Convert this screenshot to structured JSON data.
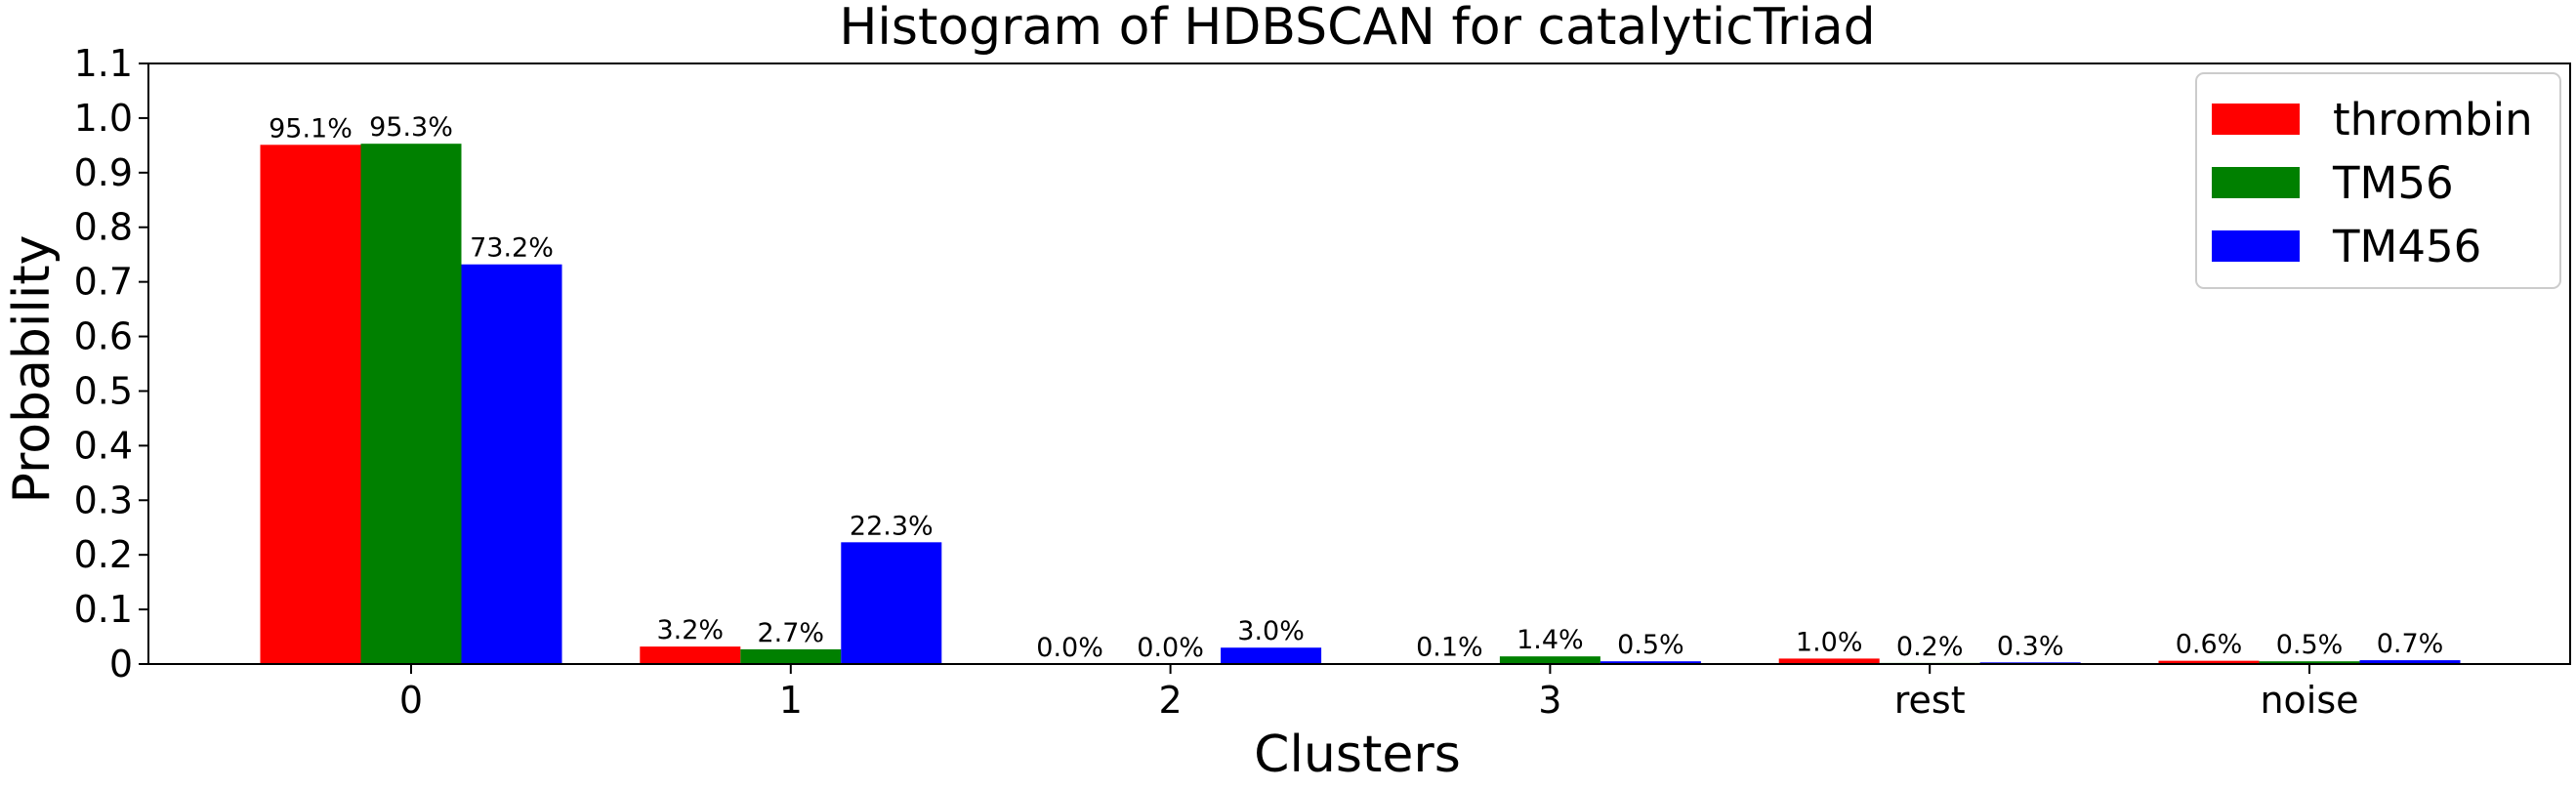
{
  "chart_data": {
    "type": "bar",
    "title": "Histogram of HDBSCAN for catalyticTriad",
    "xlabel": "Clusters",
    "ylabel": "Probability",
    "categories": [
      "0",
      "1",
      "2",
      "3",
      "rest",
      "noise"
    ],
    "ylim": [
      0,
      1.1
    ],
    "yticks": [
      "0",
      "0.1",
      "0.2",
      "0.3",
      "0.4",
      "0.5",
      "0.6",
      "0.7",
      "0.8",
      "0.9",
      "1.0",
      "1.1"
    ],
    "grid": false,
    "legend_position": "top-right",
    "series": [
      {
        "name": "thrombin",
        "color": "#ff0000",
        "values": [
          0.951,
          0.032,
          0.0,
          0.001,
          0.01,
          0.006
        ],
        "labels": [
          "95.1%",
          "3.2%",
          "0.0%",
          "0.1%",
          "1.0%",
          "0.6%"
        ]
      },
      {
        "name": "TM56",
        "color": "#008000",
        "values": [
          0.953,
          0.027,
          0.0,
          0.014,
          0.002,
          0.005
        ],
        "labels": [
          "95.3%",
          "2.7%",
          "0.0%",
          "1.4%",
          "0.2%",
          "0.5%"
        ]
      },
      {
        "name": "TM456",
        "color": "#0000ff",
        "values": [
          0.732,
          0.223,
          0.03,
          0.005,
          0.003,
          0.007
        ],
        "labels": [
          "73.2%",
          "22.3%",
          "3.0%",
          "0.5%",
          "0.3%",
          "0.7%"
        ]
      }
    ]
  }
}
